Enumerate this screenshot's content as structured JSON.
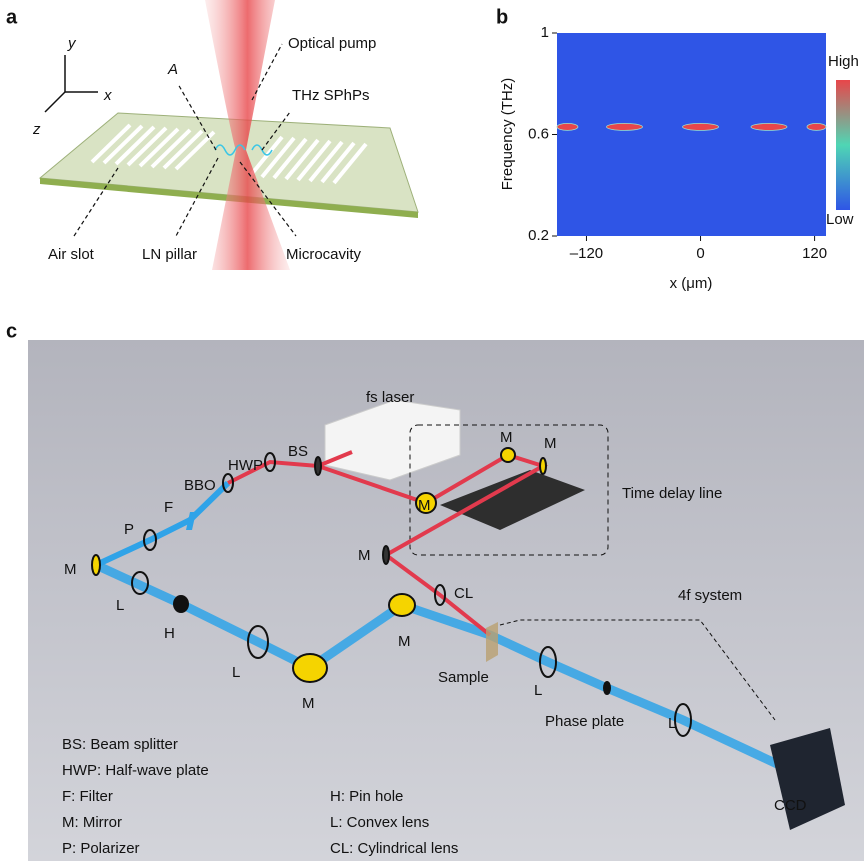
{
  "panel_a": {
    "letter": "a",
    "axes": [
      "y",
      "x",
      "z"
    ],
    "labels": [
      "A",
      "Optical pump",
      "THz SPhPs",
      "Air slot",
      "LN pillar",
      "Microcavity"
    ]
  },
  "chart_data": {
    "type": "heatmap",
    "letter": "b",
    "ylabel": "Frequency (THz)",
    "xlabel": "x (μm)",
    "x": [
      -140,
      -80,
      0,
      72,
      122
    ],
    "values": [
      0.63,
      0.63,
      0.63,
      0.63,
      0.63
    ],
    "color": "#e8464a",
    "background": "#2f55e6",
    "xlim": [
      -151,
      132
    ],
    "ylim": [
      0.2,
      1
    ],
    "xticks": [
      {
        "value": -120,
        "label": "–120"
      },
      0,
      120
    ],
    "yticks": [
      0.2,
      0.6,
      1
    ],
    "colorbar": {
      "high": "High",
      "low": "Low"
    }
  },
  "panel_c": {
    "letter": "c",
    "labels": [
      "fs laser",
      "BS",
      "HWP",
      "BBO",
      "F",
      "P",
      "M",
      "L",
      "H",
      "L",
      "M",
      "M",
      "CL",
      "M",
      "M",
      "M",
      "M",
      "Time delay line",
      "4f system",
      "Sample",
      "L",
      "Phase plate",
      "L",
      "CCD"
    ],
    "legend": [
      "BS: Beam splitter",
      "HWP: Half-wave plate",
      "F: Filter",
      "M: Mirror",
      "P: Polarizer",
      "H: Pin hole",
      "L: Convex lens",
      "CL: Cylindrical lens"
    ]
  }
}
